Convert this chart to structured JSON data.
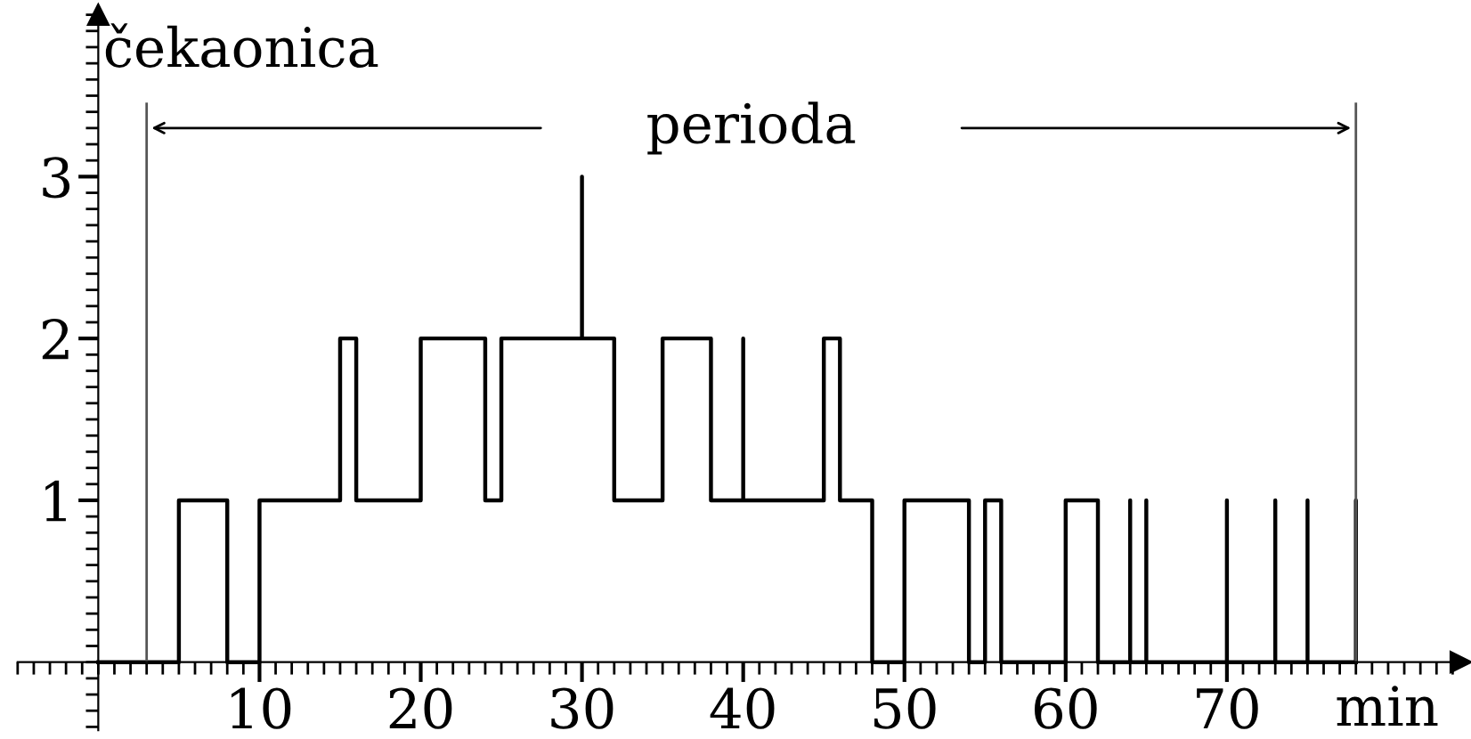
{
  "chart_data": {
    "type": "step",
    "xlabel": "min",
    "ylabel": "čekaonica",
    "x": [
      0,
      5,
      8,
      10,
      15,
      16,
      20,
      24,
      25,
      30,
      30,
      32,
      35,
      38,
      40,
      40,
      45,
      46,
      48,
      50,
      54,
      55,
      56,
      60,
      62,
      64,
      64,
      65,
      65,
      70,
      70,
      73,
      73,
      75,
      75,
      78,
      78
    ],
    "values": [
      0,
      1,
      0,
      1,
      2,
      1,
      2,
      1,
      2,
      3,
      2,
      1,
      2,
      1,
      2,
      1,
      2,
      1,
      0,
      1,
      0,
      1,
      0,
      1,
      0,
      1,
      0,
      1,
      0,
      1,
      0,
      1,
      0,
      1,
      0,
      1,
      0
    ],
    "color": "#000000",
    "xlim": [
      -5,
      84.5
    ],
    "xticks": [
      10,
      20,
      30,
      40,
      50,
      60,
      70
    ],
    "ylim": [
      -0.42,
      4.0
    ],
    "yticks": [
      1,
      2,
      3
    ],
    "ref_lines": [
      {
        "axis": "x",
        "value": 3,
        "color": "#555555"
      },
      {
        "axis": "x",
        "value": 78,
        "color": "#555555"
      }
    ],
    "annotations": [
      "perioda"
    ],
    "grid": false
  }
}
